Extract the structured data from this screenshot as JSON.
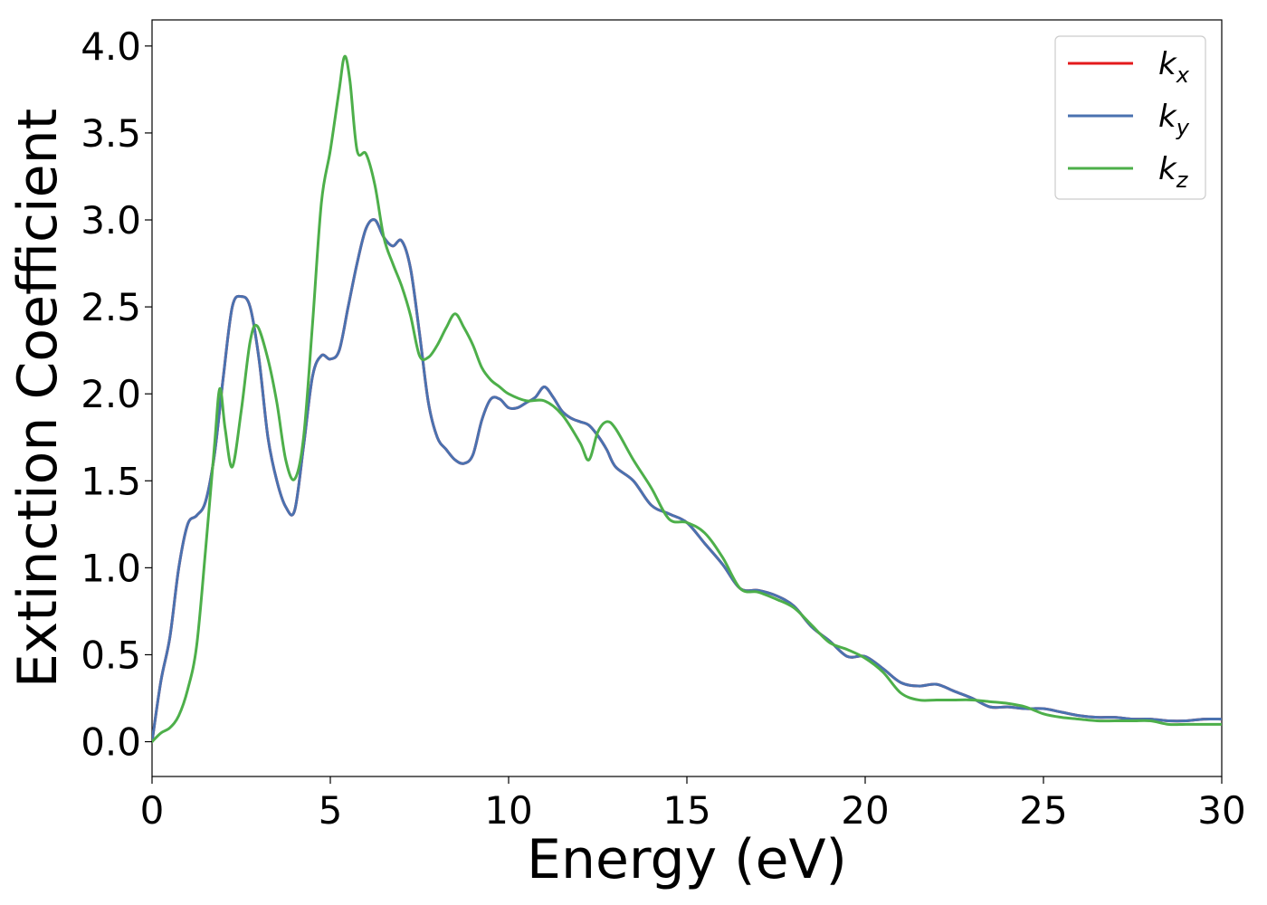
{
  "chart_data": {
    "type": "line",
    "xlabel": "Energy (eV)",
    "ylabel": "Extinction Coefficient",
    "xlim": [
      0,
      30
    ],
    "ylim": [
      -0.2,
      4.15
    ],
    "xticks": [
      0,
      5,
      10,
      15,
      20,
      25,
      30
    ],
    "xtick_labels": [
      "0",
      "5",
      "10",
      "15",
      "20",
      "25",
      "30"
    ],
    "yticks": [
      0.0,
      0.5,
      1.0,
      1.5,
      2.0,
      2.5,
      3.0,
      3.5,
      4.0
    ],
    "ytick_labels": [
      "0.0",
      "0.5",
      "1.0",
      "1.5",
      "2.0",
      "2.5",
      "3.0",
      "3.5",
      "4.0"
    ],
    "grid": false,
    "legend_position": "top-right",
    "series": [
      {
        "name": "k",
        "subscript": "x",
        "color": "#e41a1c",
        "x": [
          0,
          0.25,
          0.5,
          0.75,
          1.0,
          1.25,
          1.5,
          1.75,
          2.0,
          2.25,
          2.5,
          2.75,
          3.0,
          3.25,
          3.5,
          3.75,
          4.0,
          4.25,
          4.5,
          4.75,
          5.0,
          5.25,
          5.5,
          5.75,
          6.0,
          6.25,
          6.5,
          6.75,
          7.0,
          7.25,
          7.5,
          7.75,
          8.0,
          8.25,
          8.5,
          8.75,
          9.0,
          9.25,
          9.5,
          9.75,
          10.0,
          10.25,
          10.5,
          10.75,
          11.0,
          11.25,
          11.5,
          11.75,
          12.0,
          12.25,
          12.5,
          12.75,
          13.0,
          13.5,
          14.0,
          14.5,
          15.0,
          15.5,
          16.0,
          16.5,
          17.0,
          17.5,
          18.0,
          18.5,
          19.0,
          19.5,
          20.0,
          20.5,
          21.0,
          21.5,
          22.0,
          22.5,
          23.0,
          23.5,
          24.0,
          24.5,
          25.0,
          25.5,
          26.0,
          26.5,
          27.0,
          27.5,
          28.0,
          28.5,
          29.0,
          29.5,
          30.0
        ],
        "y": [
          0.0,
          0.35,
          0.6,
          1.0,
          1.25,
          1.3,
          1.38,
          1.65,
          2.1,
          2.5,
          2.56,
          2.5,
          2.2,
          1.75,
          1.5,
          1.35,
          1.33,
          1.7,
          2.1,
          2.22,
          2.2,
          2.25,
          2.5,
          2.75,
          2.95,
          3.0,
          2.9,
          2.85,
          2.88,
          2.72,
          2.35,
          1.95,
          1.75,
          1.68,
          1.62,
          1.6,
          1.65,
          1.85,
          1.97,
          1.97,
          1.92,
          1.92,
          1.95,
          1.98,
          2.04,
          1.98,
          1.9,
          1.86,
          1.84,
          1.82,
          1.76,
          1.68,
          1.58,
          1.5,
          1.36,
          1.31,
          1.26,
          1.14,
          1.02,
          0.88,
          0.87,
          0.84,
          0.78,
          0.66,
          0.58,
          0.49,
          0.49,
          0.42,
          0.34,
          0.32,
          0.33,
          0.29,
          0.25,
          0.2,
          0.2,
          0.19,
          0.19,
          0.17,
          0.15,
          0.14,
          0.14,
          0.13,
          0.13,
          0.12,
          0.12,
          0.13,
          0.13
        ]
      },
      {
        "name": "k",
        "subscript": "y",
        "color": "#4a72b0",
        "x": [
          0,
          0.25,
          0.5,
          0.75,
          1.0,
          1.25,
          1.5,
          1.75,
          2.0,
          2.25,
          2.5,
          2.75,
          3.0,
          3.25,
          3.5,
          3.75,
          4.0,
          4.25,
          4.5,
          4.75,
          5.0,
          5.25,
          5.5,
          5.75,
          6.0,
          6.25,
          6.5,
          6.75,
          7.0,
          7.25,
          7.5,
          7.75,
          8.0,
          8.25,
          8.5,
          8.75,
          9.0,
          9.25,
          9.5,
          9.75,
          10.0,
          10.25,
          10.5,
          10.75,
          11.0,
          11.25,
          11.5,
          11.75,
          12.0,
          12.25,
          12.5,
          12.75,
          13.0,
          13.5,
          14.0,
          14.5,
          15.0,
          15.5,
          16.0,
          16.5,
          17.0,
          17.5,
          18.0,
          18.5,
          19.0,
          19.5,
          20.0,
          20.5,
          21.0,
          21.5,
          22.0,
          22.5,
          23.0,
          23.5,
          24.0,
          24.5,
          25.0,
          25.5,
          26.0,
          26.5,
          27.0,
          27.5,
          28.0,
          28.5,
          29.0,
          29.5,
          30.0
        ],
        "y": [
          0.0,
          0.35,
          0.6,
          1.0,
          1.25,
          1.3,
          1.38,
          1.65,
          2.1,
          2.5,
          2.56,
          2.5,
          2.2,
          1.75,
          1.5,
          1.35,
          1.33,
          1.7,
          2.1,
          2.22,
          2.2,
          2.25,
          2.5,
          2.75,
          2.95,
          3.0,
          2.9,
          2.85,
          2.88,
          2.72,
          2.35,
          1.95,
          1.75,
          1.68,
          1.62,
          1.6,
          1.65,
          1.85,
          1.97,
          1.97,
          1.92,
          1.92,
          1.95,
          1.98,
          2.04,
          1.98,
          1.9,
          1.86,
          1.84,
          1.82,
          1.76,
          1.68,
          1.58,
          1.5,
          1.36,
          1.31,
          1.26,
          1.14,
          1.02,
          0.88,
          0.87,
          0.84,
          0.78,
          0.66,
          0.58,
          0.49,
          0.49,
          0.42,
          0.34,
          0.32,
          0.33,
          0.29,
          0.25,
          0.2,
          0.2,
          0.19,
          0.19,
          0.17,
          0.15,
          0.14,
          0.14,
          0.13,
          0.13,
          0.12,
          0.12,
          0.13,
          0.13
        ]
      },
      {
        "name": "k",
        "subscript": "z",
        "color": "#4daf4a",
        "x": [
          0,
          0.25,
          0.5,
          0.75,
          1.0,
          1.25,
          1.5,
          1.75,
          1.9,
          2.05,
          2.25,
          2.5,
          2.75,
          2.95,
          3.25,
          3.5,
          3.75,
          4.0,
          4.25,
          4.5,
          4.75,
          5.0,
          5.25,
          5.4,
          5.55,
          5.75,
          6.0,
          6.25,
          6.5,
          6.75,
          7.0,
          7.25,
          7.5,
          7.75,
          8.0,
          8.25,
          8.5,
          8.75,
          9.0,
          9.25,
          9.5,
          9.75,
          10.0,
          10.5,
          11.0,
          11.5,
          12.0,
          12.25,
          12.5,
          12.75,
          13.0,
          13.5,
          14.0,
          14.5,
          15.0,
          15.5,
          16.0,
          16.5,
          17.0,
          17.5,
          18.0,
          18.5,
          19.0,
          19.5,
          20.0,
          20.5,
          21.0,
          21.5,
          22.0,
          22.5,
          23.0,
          23.5,
          24.0,
          24.5,
          25.0,
          25.5,
          26.0,
          26.5,
          27.0,
          27.5,
          28.0,
          28.5,
          29.0,
          29.5,
          30.0
        ],
        "y": [
          0.0,
          0.05,
          0.08,
          0.15,
          0.3,
          0.55,
          1.1,
          1.7,
          2.03,
          1.8,
          1.58,
          1.9,
          2.3,
          2.39,
          2.2,
          1.95,
          1.62,
          1.51,
          1.75,
          2.4,
          3.1,
          3.4,
          3.75,
          3.94,
          3.8,
          3.4,
          3.38,
          3.2,
          2.9,
          2.75,
          2.62,
          2.45,
          2.22,
          2.21,
          2.28,
          2.38,
          2.46,
          2.38,
          2.28,
          2.15,
          2.08,
          2.04,
          2.0,
          1.96,
          1.96,
          1.88,
          1.72,
          1.62,
          1.78,
          1.84,
          1.8,
          1.62,
          1.46,
          1.28,
          1.26,
          1.2,
          1.06,
          0.88,
          0.86,
          0.82,
          0.77,
          0.67,
          0.57,
          0.53,
          0.48,
          0.4,
          0.28,
          0.24,
          0.24,
          0.24,
          0.24,
          0.23,
          0.22,
          0.2,
          0.16,
          0.14,
          0.13,
          0.12,
          0.12,
          0.12,
          0.12,
          0.1,
          0.1,
          0.1,
          0.1
        ]
      }
    ]
  }
}
